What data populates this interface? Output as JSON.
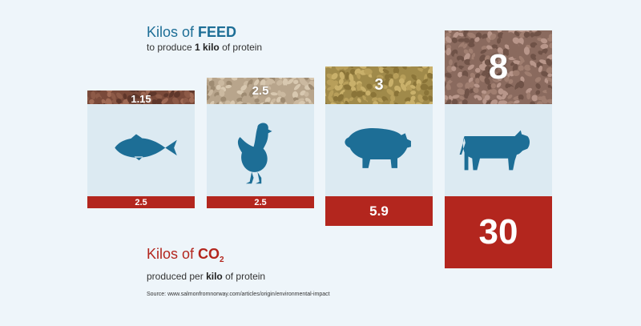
{
  "title": {
    "prefix": "Kilos of ",
    "emphasis": "FEED",
    "sub_before": "to produce ",
    "sub_emphasis": "1 kilo",
    "sub_after": " of protein"
  },
  "co2_legend": {
    "prefix": "Kilos of ",
    "emphasis": "CO",
    "subscript": "2",
    "sub_before": "produced per ",
    "sub_emphasis": "kilo",
    "sub_after": " of protein"
  },
  "source": "Source: www.salmonfromnorway.com/articles/origin/environmental-impact",
  "colors": {
    "feed_title": "#1d6e96",
    "animal": "#1d6e96",
    "co2": "#b3261e",
    "panel": "#dceaf2"
  },
  "chart_data": {
    "type": "bar",
    "categories": [
      "Salmon",
      "Chicken",
      "Pig",
      "Cow"
    ],
    "icons": [
      "fish-icon",
      "chicken-icon",
      "pig-icon",
      "cow-icon"
    ],
    "series": [
      {
        "name": "Kilos of FEED to produce 1 kilo of protein",
        "values": [
          1.15,
          2.5,
          3,
          8
        ],
        "labels": [
          "1.15",
          "2.5",
          "3",
          "8"
        ]
      },
      {
        "name": "Kilos of CO2 produced per kilo of protein",
        "values": [
          2.5,
          2.5,
          5.9,
          30
        ],
        "labels": [
          "2.5",
          "2.5",
          "5.9",
          "30"
        ]
      }
    ]
  }
}
